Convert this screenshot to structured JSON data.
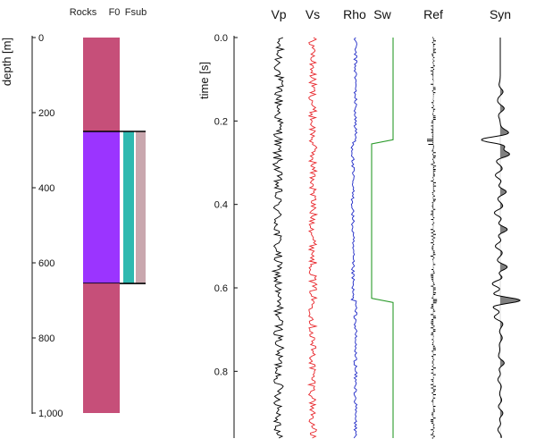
{
  "chart_data": [
    {
      "type": "well-log-model",
      "columns": [
        "Rocks",
        "F0",
        "Fsub"
      ],
      "ylabel": "depth [m]",
      "ylim": [
        0,
        1000
      ],
      "yticks": [
        0,
        200,
        400,
        600,
        800,
        1000
      ],
      "ytick_labels": [
        "0",
        "200",
        "400",
        "600",
        "800",
        "1,000"
      ],
      "layers": [
        {
          "top": 0,
          "base": 250,
          "rocks_color": "#c64f79",
          "fluids": false
        },
        {
          "top": 250,
          "base": 655,
          "rocks_color": "#9b34ff",
          "f0_color": "#2fb9b0",
          "fsub_color": "#c9a7ae",
          "fluids": true
        },
        {
          "top": 655,
          "base": 1000,
          "rocks_color": "#c64f79",
          "fluids": false
        }
      ]
    },
    {
      "type": "line",
      "ylabel": "time [s]",
      "ylim": [
        0,
        0.96
      ],
      "yticks": [
        0,
        0.2,
        0.4,
        0.6,
        0.8
      ],
      "ytick_labels": [
        "0.0",
        "0.2",
        "0.4",
        "0.6",
        "0.8"
      ],
      "tracks": [
        {
          "name": "Vp",
          "color": "#000000",
          "kind": "noisy",
          "levels": [
            [
              0,
              0.25,
              0.0
            ],
            [
              0.25,
              0.63,
              -0.15
            ],
            [
              0.63,
              0.96,
              0.0
            ]
          ],
          "noise": 0.55
        },
        {
          "name": "Vs",
          "color": "#e8262b",
          "kind": "noisy",
          "levels": [
            [
              0,
              0.25,
              0.0
            ],
            [
              0.25,
              0.63,
              0.05
            ],
            [
              0.63,
              0.96,
              0.0
            ]
          ],
          "noise": 0.55
        },
        {
          "name": "Rho",
          "color": "#1d28c6",
          "kind": "noisy",
          "levels": [
            [
              0,
              0.25,
              0.15
            ],
            [
              0.25,
              0.63,
              -0.35
            ],
            [
              0.63,
              0.96,
              0.15
            ]
          ],
          "noise": 0.3
        },
        {
          "name": "Sw",
          "color": "#2a9a2a",
          "kind": "step",
          "steps": [
            [
              0,
              0.245,
              1
            ],
            [
              0.255,
              0.625,
              0
            ],
            [
              0.635,
              0.96,
              1
            ]
          ]
        },
        {
          "name": "Ref",
          "color": "#000000",
          "kind": "spikes",
          "big_spikes": [
            [
              0.245,
              -1
            ],
            [
              0.255,
              -0.8
            ],
            [
              0.63,
              0.6
            ],
            [
              0.635,
              0.5
            ]
          ]
        },
        {
          "name": "Syn",
          "color": "#000000",
          "fill": "#808080",
          "kind": "wiggle",
          "events": [
            [
              0.13,
              0.14
            ],
            [
              0.17,
              0.2
            ],
            [
              0.245,
              -0.95
            ],
            [
              0.28,
              0.45
            ],
            [
              0.33,
              -0.25
            ],
            [
              0.37,
              0.3
            ],
            [
              0.42,
              -0.3
            ],
            [
              0.46,
              0.35
            ],
            [
              0.5,
              -0.25
            ],
            [
              0.55,
              0.35
            ],
            [
              0.59,
              -0.4
            ],
            [
              0.63,
              1.0
            ],
            [
              0.67,
              -0.3
            ],
            [
              0.72,
              0.1
            ],
            [
              0.78,
              0.2
            ],
            [
              0.82,
              -0.12
            ],
            [
              0.87,
              0.08
            ],
            [
              0.9,
              0.14
            ],
            [
              0.94,
              -0.12
            ]
          ]
        }
      ]
    }
  ]
}
